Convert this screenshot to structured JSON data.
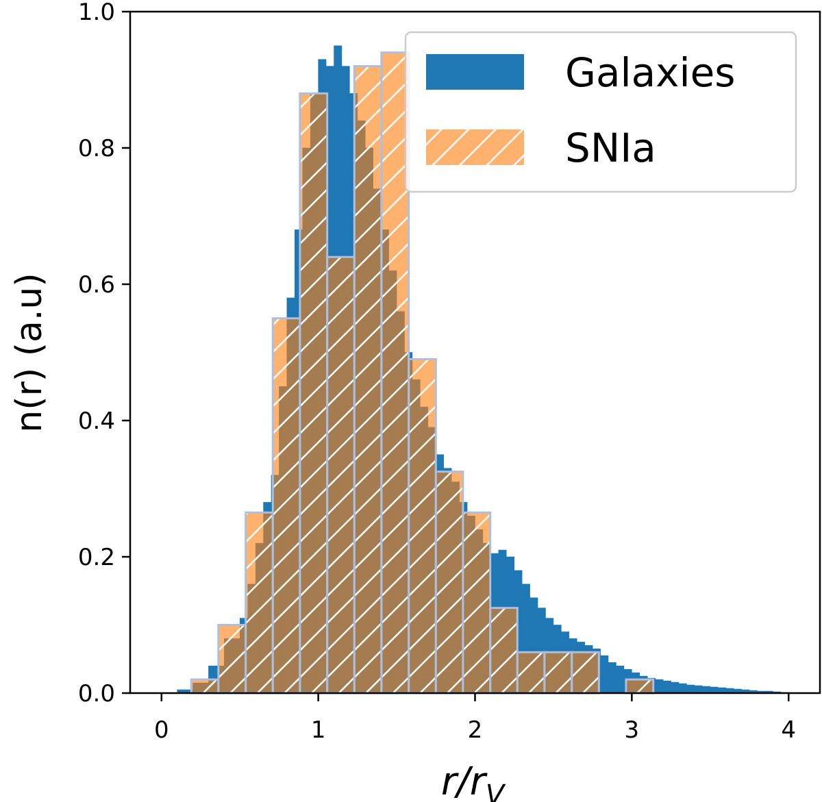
{
  "chart_data": {
    "type": "histogram",
    "xlabel": "r/r",
    "xlabel_subscript": "V",
    "ylabel": "n(r) (a.u)",
    "xlim": [
      -0.2,
      4.2
    ],
    "ylim": [
      0,
      1.0
    ],
    "xticks": [
      0,
      1,
      2,
      3,
      4
    ],
    "yticks": [
      {
        "value": 0,
        "label": "0.0"
      },
      0.2,
      0.4,
      0.6,
      0.8,
      {
        "value": 1,
        "label": "1.0"
      }
    ],
    "grid": false,
    "legend": "upper right",
    "series": [
      {
        "name": "Galaxies",
        "color": "#1f77b4",
        "hatch": false,
        "bins": [
          0.1,
          0.2,
          0.3,
          0.4,
          0.5,
          0.55,
          0.6,
          0.65,
          0.7,
          0.75,
          0.8,
          0.85,
          0.9,
          0.95,
          1.0,
          1.05,
          1.1,
          1.15,
          1.2,
          1.25,
          1.3,
          1.35,
          1.4,
          1.45,
          1.5,
          1.55,
          1.6,
          1.65,
          1.7,
          1.75,
          1.8,
          1.85,
          1.9,
          1.95,
          2.0,
          2.05,
          2.1,
          2.15,
          2.2,
          2.25,
          2.3,
          2.35,
          2.4,
          2.45,
          2.5,
          2.55,
          2.6,
          2.65,
          2.7,
          2.75,
          2.8,
          2.85,
          2.9,
          2.95,
          3.0,
          3.05,
          3.1,
          3.15,
          3.2,
          3.25,
          3.3,
          3.35,
          3.4,
          3.45,
          3.5,
          3.55,
          3.6,
          3.65,
          3.7,
          3.75,
          3.8,
          3.85,
          3.9,
          3.95,
          4.0
        ],
        "values": [
          0.005,
          0.015,
          0.04,
          0.08,
          0.11,
          0.16,
          0.22,
          0.28,
          0.32,
          0.45,
          0.58,
          0.68,
          0.8,
          0.88,
          0.93,
          0.92,
          0.95,
          0.92,
          0.88,
          0.84,
          0.8,
          0.74,
          0.68,
          0.62,
          0.56,
          0.5,
          0.46,
          0.42,
          0.39,
          0.35,
          0.33,
          0.31,
          0.28,
          0.26,
          0.24,
          0.22,
          0.205,
          0.21,
          0.2,
          0.18,
          0.16,
          0.14,
          0.125,
          0.11,
          0.1,
          0.09,
          0.08,
          0.075,
          0.07,
          0.065,
          0.055,
          0.045,
          0.04,
          0.035,
          0.03,
          0.025,
          0.022,
          0.02,
          0.018,
          0.016,
          0.014,
          0.012,
          0.011,
          0.01,
          0.009,
          0.008,
          0.007,
          0.006,
          0.005,
          0.004,
          0.003,
          0.003,
          0.002,
          0.001
        ]
      },
      {
        "name": "SNIa",
        "color": "#ff7f0e",
        "hatch": true,
        "edgecolor": "#a9c0e0",
        "bins": [
          0.19,
          0.363,
          0.537,
          0.71,
          0.883,
          1.057,
          1.23,
          1.403,
          1.577,
          1.75,
          1.923,
          2.097,
          2.27,
          2.443,
          2.617,
          2.79,
          2.963,
          3.137
        ],
        "values": [
          0.02,
          0.1,
          0.265,
          0.55,
          0.88,
          0.64,
          0.92,
          0.94,
          0.49,
          0.325,
          0.265,
          0.125,
          0.06,
          0.06,
          0.06,
          0,
          0.02
        ]
      }
    ]
  }
}
